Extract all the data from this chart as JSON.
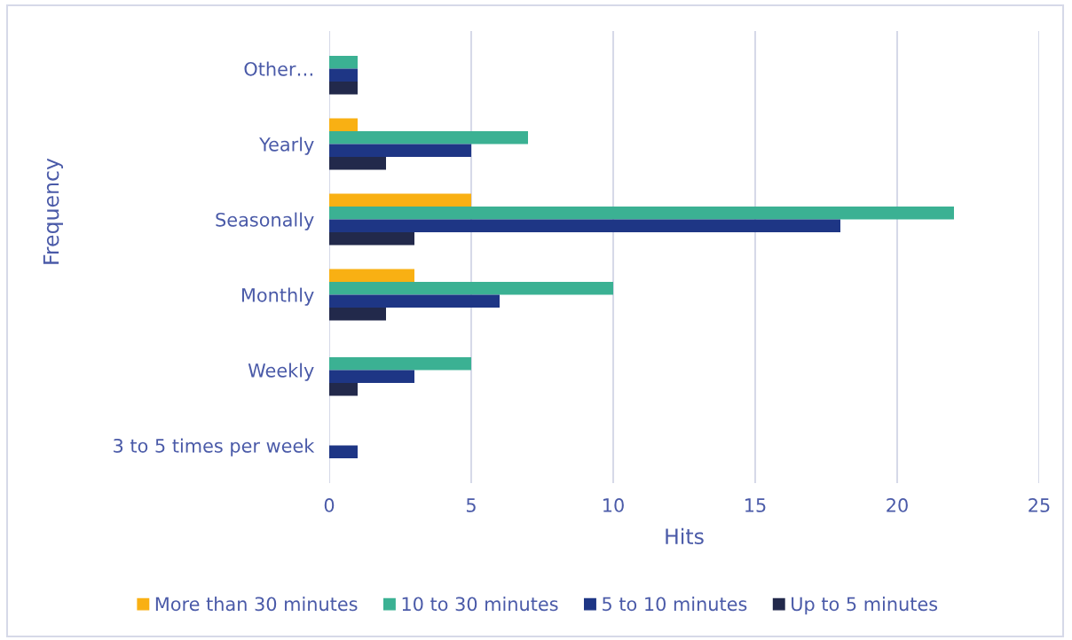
{
  "chart_data": {
    "type": "bar",
    "orientation": "horizontal",
    "xlabel": "Hits",
    "ylabel": "Frequency",
    "categories": [
      "Other…",
      "Yearly",
      "Seasonally",
      "Monthly",
      "Weekly",
      "3 to 5 times per week"
    ],
    "series": [
      {
        "name": "More than 30 minutes",
        "color": "#f9b013",
        "values": [
          null,
          1,
          5,
          3,
          null,
          null
        ]
      },
      {
        "name": "10 to 30 minutes",
        "color": "#3bb193",
        "values": [
          1,
          7,
          22,
          10,
          5,
          null
        ]
      },
      {
        "name": "5 to 10 minutes",
        "color": "#1e3685",
        "values": [
          1,
          5,
          18,
          6,
          3,
          1
        ]
      },
      {
        "name": "Up to 5 minutes",
        "color": "#22294b",
        "values": [
          1,
          2,
          3,
          2,
          1,
          null
        ]
      }
    ],
    "xlim": [
      0,
      25
    ],
    "xticks": [
      0,
      5,
      10,
      15,
      20,
      25
    ],
    "grid": "x",
    "legend": "bottom"
  }
}
